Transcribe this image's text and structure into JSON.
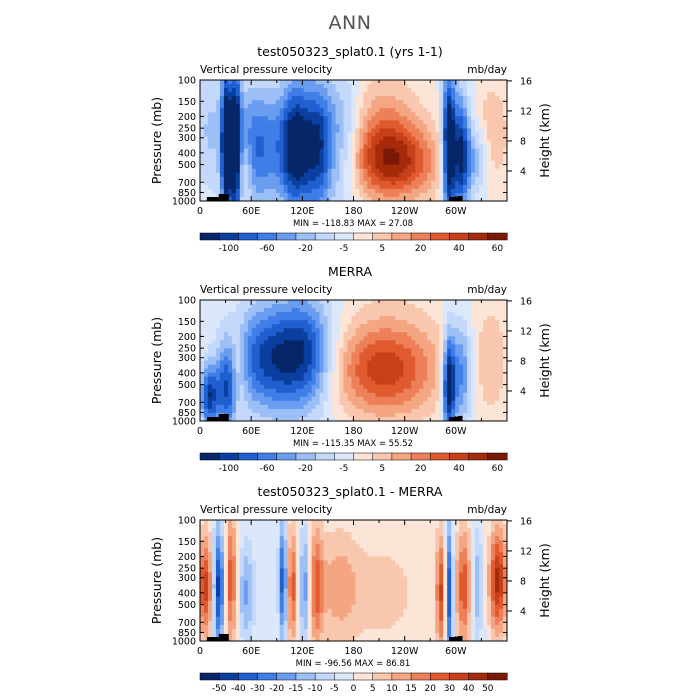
{
  "main_title": "ANN",
  "chart_data": [
    {
      "type": "heatmap",
      "title": "test050323_splat0.1 (yrs 1-1)",
      "subtitle_left": "Vertical pressure velocity",
      "units": "mb/day",
      "ylabel": "Pressure (mb)",
      "ylabel_right": "Height (km)",
      "x_ticks": [
        "0",
        "60E",
        "120E",
        "180",
        "120W",
        "60W"
      ],
      "y_ticks": [
        "100",
        "150",
        "200",
        "250",
        "300",
        "400",
        "500",
        "700",
        "850",
        "1000"
      ],
      "y_ticks_right": [
        "16",
        "12",
        "8",
        "4"
      ],
      "stats": "MIN = -118.83  MAX =  27.08",
      "colorbar_labels": [
        "-100",
        "-60",
        "-20",
        "-5",
        "5",
        "20",
        "40",
        "60"
      ],
      "colorbar_colors": [
        "#06266a",
        "#0a3fa0",
        "#1f5fd0",
        "#3f7ee6",
        "#6a9df0",
        "#9cc0f5",
        "#c3d8fa",
        "#dbe8fb",
        "#fce4d6",
        "#f9c7ae",
        "#f4a582",
        "#ee8059",
        "#e05a2f",
        "#c7401a",
        "#a52a0a",
        "#7a1a05"
      ]
    },
    {
      "type": "heatmap",
      "title": "MERRA",
      "subtitle_left": "Vertical pressure velocity",
      "units": "mb/day",
      "ylabel": "Pressure (mb)",
      "ylabel_right": "Height (km)",
      "x_ticks": [
        "0",
        "60E",
        "120E",
        "180",
        "120W",
        "60W"
      ],
      "y_ticks": [
        "100",
        "150",
        "200",
        "250",
        "300",
        "400",
        "500",
        "700",
        "850",
        "1000"
      ],
      "y_ticks_right": [
        "16",
        "12",
        "8",
        "4"
      ],
      "stats": "MIN = -115.35  MAX =  55.52",
      "colorbar_labels": [
        "-100",
        "-60",
        "-20",
        "-5",
        "5",
        "20",
        "40",
        "60"
      ],
      "colorbar_colors": [
        "#06266a",
        "#0a3fa0",
        "#1f5fd0",
        "#3f7ee6",
        "#6a9df0",
        "#9cc0f5",
        "#c3d8fa",
        "#dbe8fb",
        "#fce4d6",
        "#f9c7ae",
        "#f4a582",
        "#ee8059",
        "#e05a2f",
        "#c7401a",
        "#a52a0a",
        "#7a1a05"
      ]
    },
    {
      "type": "heatmap",
      "title": "test050323_splat0.1 - MERRA",
      "subtitle_left": "Vertical pressure velocity",
      "units": "mb/day",
      "ylabel": "Pressure (mb)",
      "ylabel_right": "Height (km)",
      "x_ticks": [
        "0",
        "60E",
        "120E",
        "180",
        "120W",
        "60W"
      ],
      "y_ticks": [
        "100",
        "150",
        "200",
        "250",
        "300",
        "400",
        "500",
        "700",
        "850",
        "1000"
      ],
      "y_ticks_right": [
        "16",
        "12",
        "8",
        "4"
      ],
      "stats": "MIN = -96.56  MAX =  86.81",
      "colorbar_labels": [
        "-50",
        "-40",
        "-30",
        "-20",
        "-15",
        "-10",
        "-5",
        "0",
        "5",
        "10",
        "15",
        "20",
        "30",
        "40",
        "50"
      ],
      "colorbar_colors": [
        "#06266a",
        "#0a3fa0",
        "#1f5fd0",
        "#3f7ee6",
        "#6a9df0",
        "#9cc0f5",
        "#c3d8fa",
        "#dbe8fb",
        "#fce4d6",
        "#f9c7ae",
        "#f4a582",
        "#ee8059",
        "#e05a2f",
        "#c7401a",
        "#a52a0a",
        "#7a1a05"
      ]
    }
  ]
}
